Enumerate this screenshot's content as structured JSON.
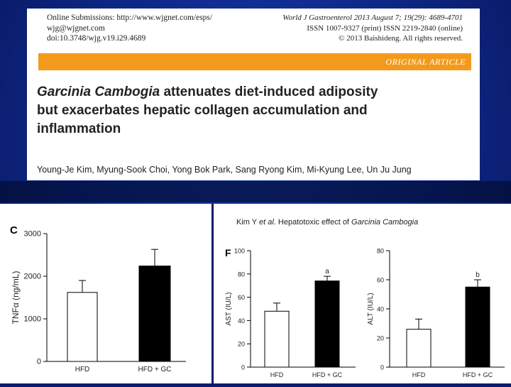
{
  "header": {
    "online": "Online Submissions: http://www.wjgnet.com/esps/",
    "email": "wjg@wjgnet.com",
    "doi": "doi:10.3748/wjg.v19.i29.4689",
    "journal": "World J Gastroenterol 2013 August 7; 19(29): 4689-4701",
    "issn": "ISSN 1007-9327 (print) ISSN 2219-2840 (online)",
    "copyright": "© 2013 Baishideng. All rights reserved."
  },
  "article_type": "ORIGINAL ARTICLE",
  "title": {
    "italic_part": "Garcinia Cambogia",
    "rest_line1": " attenuates diet-induced adiposity",
    "line2": "but exacerbates hepatic collagen accumulation and",
    "line3": "inflammation"
  },
  "authors": "Young-Je Kim, Myung-Sook Choi, Yong Bok Park, Sang Ryong Kim, Mi-Kyung Lee, Un Ju Jung",
  "running_head": {
    "prefix": "Kim Y ",
    "etal": "et al",
    "middle": ". Hepatotoxic effect of ",
    "species": "Garcinia Cambogia"
  },
  "colors": {
    "orange": "#f39a1c",
    "background": "#1b3fb0"
  },
  "chart_data": [
    {
      "type": "bar",
      "panel": "C",
      "categories": [
        "HFD",
        "HFD + GC"
      ],
      "values": [
        1620,
        2240
      ],
      "errors": [
        280,
        390
      ],
      "ylabel": "TNFα (ng/mL)",
      "ylim": [
        0,
        3000
      ],
      "yticks": [
        "0",
        "1000",
        "2000",
        "3000"
      ],
      "bar_fill": [
        "#ffffff",
        "#000000"
      ],
      "annotations": [
        "",
        ""
      ]
    },
    {
      "type": "bar",
      "panel": "F",
      "categories": [
        "HFD",
        "HFD + GC"
      ],
      "values": [
        48,
        74
      ],
      "errors": [
        7,
        4
      ],
      "ylabel": "AST (IU/L)",
      "ylim": [
        0,
        100
      ],
      "yticks": [
        "0",
        "20",
        "40",
        "60",
        "80",
        "100"
      ],
      "bar_fill": [
        "#ffffff",
        "#000000"
      ],
      "annotations": [
        "",
        "a"
      ]
    },
    {
      "type": "bar",
      "panel": "",
      "categories": [
        "HFD",
        "HFD + GC"
      ],
      "values": [
        26,
        55
      ],
      "errors": [
        7,
        5
      ],
      "ylabel": "ALT (IU/L)",
      "ylim": [
        0,
        80
      ],
      "yticks": [
        "0",
        "20",
        "40",
        "60",
        "80"
      ],
      "bar_fill": [
        "#ffffff",
        "#000000"
      ],
      "annotations": [
        "",
        "b"
      ]
    }
  ]
}
